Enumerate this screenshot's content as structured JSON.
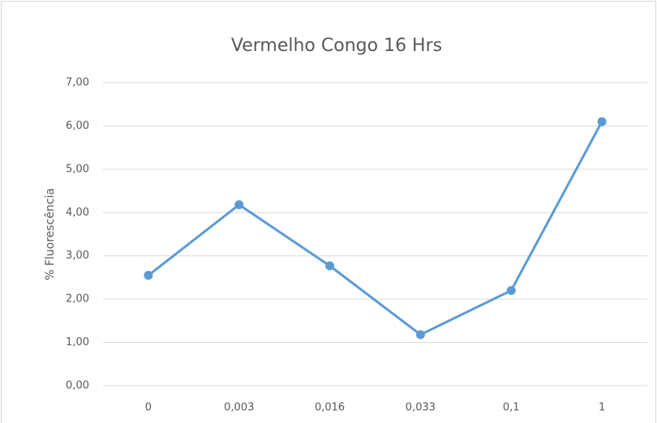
{
  "chart_data": {
    "type": "line",
    "title": "Vermelho Congo 16 Hrs",
    "y_label": "% Fluorescência",
    "categories": [
      "0",
      "0,003",
      "0,016",
      "0,033",
      "0,1",
      "1"
    ],
    "values": [
      2.55,
      4.18,
      2.77,
      1.18,
      2.2,
      6.1
    ],
    "color": "#5b9bd5",
    "ylim": [
      0,
      7
    ],
    "yticks": [
      {
        "value": 0,
        "label": "0,00"
      },
      {
        "value": 1,
        "label": "1,00"
      },
      {
        "value": 2,
        "label": "2,00"
      },
      {
        "value": 3,
        "label": "3,00"
      },
      {
        "value": 4,
        "label": "4,00"
      },
      {
        "value": 5,
        "label": "5,00"
      },
      {
        "value": 6,
        "label": "6,00"
      },
      {
        "value": 7,
        "label": "7,00"
      }
    ],
    "grid": true
  }
}
